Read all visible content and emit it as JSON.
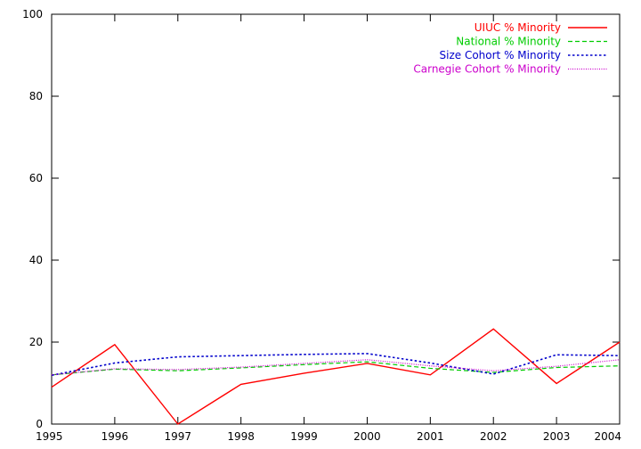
{
  "chart_data": {
    "type": "line",
    "x": [
      1995,
      1996,
      1997,
      1998,
      1999,
      2000,
      2001,
      2002,
      2003,
      2004
    ],
    "xlim": [
      1995,
      2004
    ],
    "ylim": [
      0,
      100
    ],
    "x_ticks": [
      "1995",
      "1996",
      "1997",
      "1998",
      "1999",
      "2000",
      "2001",
      "2002",
      "2003",
      "2004"
    ],
    "y_ticks": [
      "0",
      "20",
      "40",
      "60",
      "80",
      "100"
    ],
    "legend_position": "top-right",
    "grid": false,
    "series": [
      {
        "name": "UIUC % Minority",
        "color": "#ff0000",
        "dash": "solid",
        "values": [
          9.0,
          19.4,
          0.0,
          9.7,
          12.4,
          14.8,
          12.0,
          23.2,
          9.9,
          20.0
        ]
      },
      {
        "name": "National % Minority",
        "color": "#00cc00",
        "dash": "dashed",
        "values": [
          12.0,
          13.4,
          13.0,
          13.7,
          14.5,
          15.2,
          13.6,
          12.6,
          13.8,
          14.2
        ]
      },
      {
        "name": "Size Cohort % Minority",
        "color": "#0000cc",
        "dash": "dotted",
        "values": [
          11.9,
          14.9,
          16.4,
          16.7,
          17.0,
          17.2,
          14.9,
          12.2,
          16.9,
          16.7
        ]
      },
      {
        "name": "Carnegie Cohort % Minority",
        "color": "#cc00cc",
        "dash": "fine-dotted",
        "values": [
          12.0,
          13.5,
          13.3,
          13.9,
          14.8,
          15.7,
          14.2,
          13.0,
          14.1,
          15.7
        ]
      }
    ]
  }
}
